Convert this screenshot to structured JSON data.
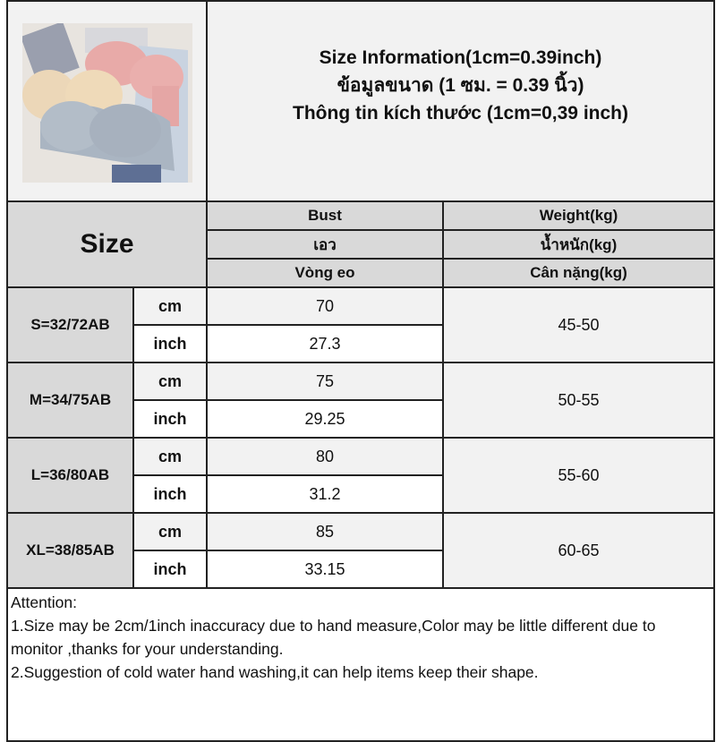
{
  "header": {
    "title_lines": [
      "Size Information(1cm=0.39inch)",
      "ข้อมูลขนาด (1 ซม. = 0.39 นิ้ว)",
      "Thông tin kích thước (1cm=0,39 inch)"
    ]
  },
  "table": {
    "size_header": "Size",
    "bust_headers": [
      "Bust",
      "เอว",
      "Vòng eo"
    ],
    "weight_headers": [
      "Weight(kg)",
      "น้ำหนัก(kg)",
      "Cân nặng(kg)"
    ],
    "unit_cm": "cm",
    "unit_inch": "inch",
    "rows": [
      {
        "size": "S=32/72AB",
        "cm": "70",
        "inch": "27.3",
        "weight": "45-50"
      },
      {
        "size": "M=34/75AB",
        "cm": "75",
        "inch": "29.25",
        "weight": "50-55"
      },
      {
        "size": "L=36/80AB",
        "cm": "80",
        "inch": "31.2",
        "weight": "55-60"
      },
      {
        "size": "XL=38/85AB",
        "cm": "85",
        "inch": "33.15",
        "weight": "60-65"
      }
    ]
  },
  "attention": {
    "title": "Attention:",
    "lines": [
      "1.Size may be 2cm/1inch inaccuracy due to hand measure,Color may be little different due to monitor ,thanks for your understanding.",
      "2.Suggestion of cold water hand washing,it can help items keep their shape."
    ]
  }
}
